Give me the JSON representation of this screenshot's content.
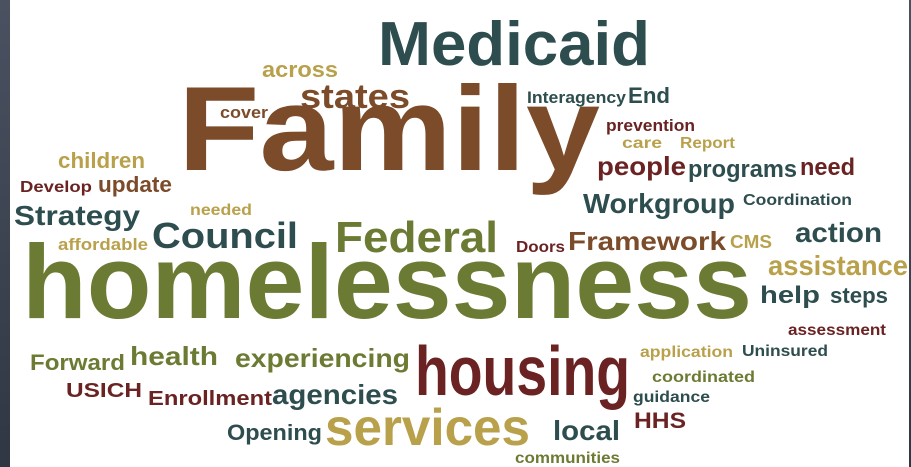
{
  "words": [
    {
      "text": "Medicaid",
      "color": "#2d4d4e"
    },
    {
      "text": "Family",
      "color": "#7b4b2a"
    },
    {
      "text": "homelessness",
      "color": "#6c7b33"
    },
    {
      "text": "housing",
      "color": "#6a2222"
    },
    {
      "text": "services",
      "color": "#b9a14c"
    },
    {
      "text": "across",
      "color": "#b9a14c"
    },
    {
      "text": "states",
      "color": "#7b4b2a"
    },
    {
      "text": "cover",
      "color": "#7b4b2a"
    },
    {
      "text": "Interagency",
      "color": "#2d4d4e"
    },
    {
      "text": "End",
      "color": "#2d4d4e"
    },
    {
      "text": "prevention",
      "color": "#6a2222"
    },
    {
      "text": "care",
      "color": "#b9a14c"
    },
    {
      "text": "Report",
      "color": "#b9a14c"
    },
    {
      "text": "children",
      "color": "#b9a14c"
    },
    {
      "text": "Develop",
      "color": "#6a2222"
    },
    {
      "text": "update",
      "color": "#7b4b2a"
    },
    {
      "text": "people",
      "color": "#6a2222"
    },
    {
      "text": "programs",
      "color": "#2d4d4e"
    },
    {
      "text": "need",
      "color": "#6a2222"
    },
    {
      "text": "Strategy",
      "color": "#2d4d4e"
    },
    {
      "text": "needed",
      "color": "#b9a14c"
    },
    {
      "text": "Workgroup",
      "color": "#2d4d4e"
    },
    {
      "text": "Coordination",
      "color": "#2d4d4e"
    },
    {
      "text": "Council",
      "color": "#2d4d4e"
    },
    {
      "text": "Federal",
      "color": "#6c7b33"
    },
    {
      "text": "affordable",
      "color": "#b9a14c"
    },
    {
      "text": "Doors",
      "color": "#6a2222"
    },
    {
      "text": "Framework",
      "color": "#7b4b2a"
    },
    {
      "text": "CMS",
      "color": "#b9a14c"
    },
    {
      "text": "action",
      "color": "#2d4d4e"
    },
    {
      "text": "assistance",
      "color": "#b9a14c"
    },
    {
      "text": "help",
      "color": "#2d4d4e"
    },
    {
      "text": "steps",
      "color": "#2d4d4e"
    },
    {
      "text": "assessment",
      "color": "#6a2222"
    },
    {
      "text": "Forward",
      "color": "#6c7b33"
    },
    {
      "text": "health",
      "color": "#6c7b33"
    },
    {
      "text": "experiencing",
      "color": "#6c7b33"
    },
    {
      "text": "application",
      "color": "#b9a14c"
    },
    {
      "text": "Uninsured",
      "color": "#2d4d4e"
    },
    {
      "text": "coordinated",
      "color": "#6c7b33"
    },
    {
      "text": "USICH",
      "color": "#6a2222"
    },
    {
      "text": "Enrollment",
      "color": "#6a2222"
    },
    {
      "text": "agencies",
      "color": "#2d4d4e"
    },
    {
      "text": "guidance",
      "color": "#2d4d4e"
    },
    {
      "text": "HHS",
      "color": "#6a2222"
    },
    {
      "text": "Opening",
      "color": "#2d4d4e"
    },
    {
      "text": "local",
      "color": "#2d4d4e"
    },
    {
      "text": "communities",
      "color": "#6c7b33"
    }
  ]
}
